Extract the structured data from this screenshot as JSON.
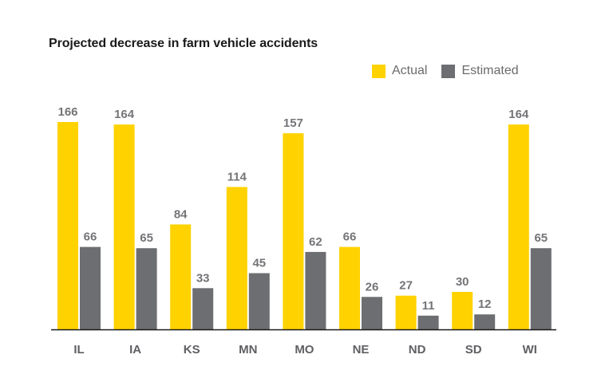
{
  "chart_data": {
    "type": "bar",
    "title": "Projected decrease in farm vehicle accidents",
    "xlabel": "",
    "ylabel": "",
    "categories": [
      "IL",
      "IA",
      "KS",
      "MN",
      "MO",
      "NE",
      "ND",
      "SD",
      "WI"
    ],
    "series": [
      {
        "name": "Actual",
        "color": "#FFD200",
        "values": [
          166,
          164,
          84,
          114,
          157,
          66,
          27,
          30,
          164
        ]
      },
      {
        "name": "Estimated",
        "color": "#6D6E71",
        "values": [
          66,
          65,
          33,
          45,
          62,
          26,
          11,
          12,
          65
        ]
      }
    ],
    "ylim": [
      0,
      166
    ],
    "grid": false,
    "legend_position": "top-right",
    "data_labels": true
  }
}
